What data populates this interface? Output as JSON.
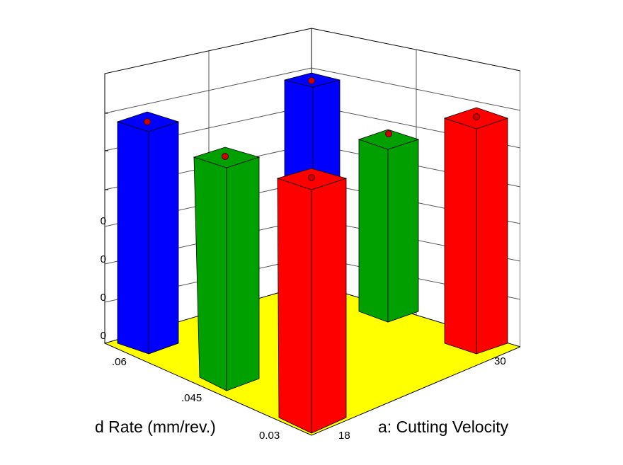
{
  "y_tick_labels": [
    "0",
    "0",
    "0",
    "0"
  ],
  "x_tick_labels": [
    ".06",
    ".045",
    "0.03"
  ],
  "z_tick_labels": [
    "18",
    "30"
  ],
  "x_axis_title": "d Rate (mm/rev.)",
  "z_axis_title": "a: Cutting Velocity"
}
